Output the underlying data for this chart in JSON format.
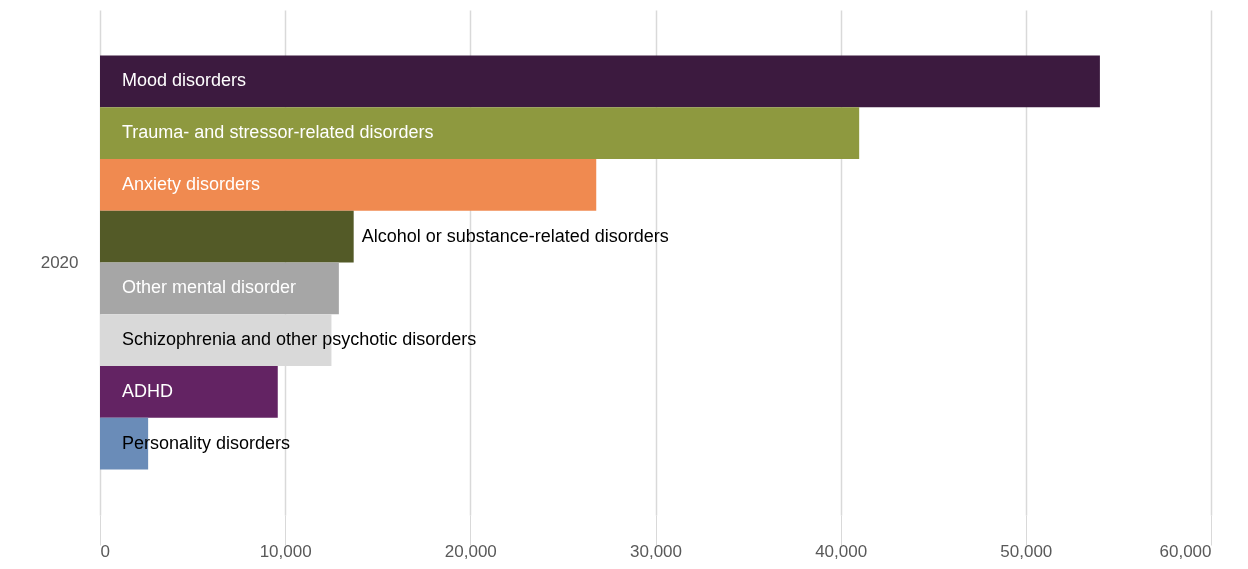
{
  "chart_data": {
    "type": "bar",
    "orientation": "horizontal",
    "categories": [
      "2020"
    ],
    "series": [
      {
        "name": "Mood disorders",
        "color": "#3c1a3f",
        "values": [
          54000
        ]
      },
      {
        "name": "Trauma- and stressor-related disorders",
        "color": "#8e993f",
        "values": [
          41000
        ]
      },
      {
        "name": "Anxiety disorders",
        "color": "#f08a50",
        "values": [
          26800
        ]
      },
      {
        "name": "Alcohol or substance-related disorders",
        "color": "#535a27",
        "values": [
          13700
        ]
      },
      {
        "name": "Other mental disorder",
        "color": "#a6a6a6",
        "values": [
          12900
        ]
      },
      {
        "name": "Schizophrenia and other psychotic disorders",
        "color": "#d9d9d9",
        "values": [
          12500
        ]
      },
      {
        "name": "ADHD",
        "color": "#632363",
        "values": [
          9600
        ]
      },
      {
        "name": "Personality disorders",
        "color": "#6a8cb8",
        "values": [
          2600
        ]
      }
    ],
    "xlim": [
      0,
      60000
    ],
    "xticks": [
      0,
      {
        "value": 10000,
        "label": "10,000"
      },
      {
        "value": 20000,
        "label": "20,000"
      },
      {
        "value": 30000,
        "label": "30,000"
      },
      {
        "value": 40000,
        "label": "40,000"
      },
      {
        "value": 50000,
        "label": "50,000"
      },
      {
        "value": 60000,
        "label": "60,000"
      }
    ],
    "grid": "x"
  }
}
